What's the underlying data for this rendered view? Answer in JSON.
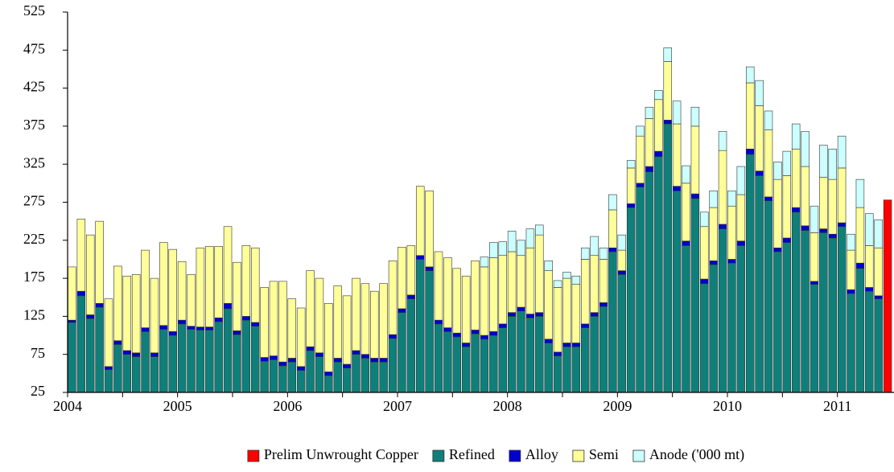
{
  "chart_data": {
    "type": "bar",
    "stacked": true,
    "categories": [
      "2004",
      null,
      null,
      null,
      null,
      null,
      null,
      null,
      null,
      null,
      null,
      null,
      "2005",
      null,
      null,
      null,
      null,
      null,
      null,
      null,
      null,
      null,
      null,
      null,
      "2006",
      null,
      null,
      null,
      null,
      null,
      null,
      null,
      null,
      null,
      null,
      null,
      "2007",
      null,
      null,
      null,
      null,
      null,
      null,
      null,
      null,
      null,
      null,
      null,
      "2008",
      null,
      null,
      null,
      null,
      null,
      null,
      null,
      null,
      null,
      null,
      null,
      "2009",
      null,
      null,
      null,
      null,
      null,
      null,
      null,
      null,
      null,
      null,
      null,
      "2010",
      null,
      null,
      null,
      null,
      null,
      null,
      null,
      null,
      null,
      null,
      null,
      "2011",
      null,
      null,
      null,
      null,
      null
    ],
    "series": [
      {
        "name": "Prelim Unwrought Copper",
        "color": "#ff0000",
        "values": [
          null,
          null,
          null,
          null,
          null,
          null,
          null,
          null,
          null,
          null,
          null,
          null,
          null,
          null,
          null,
          null,
          null,
          null,
          null,
          null,
          null,
          null,
          null,
          null,
          null,
          null,
          null,
          null,
          null,
          null,
          null,
          null,
          null,
          null,
          null,
          null,
          null,
          null,
          null,
          null,
          null,
          null,
          null,
          null,
          null,
          null,
          null,
          null,
          null,
          null,
          null,
          null,
          null,
          null,
          null,
          null,
          null,
          null,
          null,
          null,
          null,
          null,
          null,
          null,
          null,
          null,
          null,
          null,
          null,
          null,
          null,
          null,
          null,
          null,
          null,
          null,
          null,
          null,
          null,
          null,
          null,
          null,
          null,
          null,
          null,
          null,
          null,
          null,
          null,
          278
        ]
      },
      {
        "name": "Refined",
        "color": "#0f7f7a",
        "values": [
          117,
          152,
          122,
          137,
          55,
          88,
          75,
          72,
          105,
          72,
          108,
          100,
          115,
          108,
          107,
          107,
          118,
          135,
          101,
          120,
          112,
          66,
          68,
          60,
          65,
          54,
          80,
          72,
          47,
          65,
          57,
          75,
          70,
          65,
          65,
          96,
          130,
          148,
          200,
          185,
          115,
          105,
          98,
          85,
          102,
          95,
          100,
          110,
          125,
          132,
          123,
          125,
          90,
          73,
          85,
          85,
          110,
          125,
          138,
          210,
          180,
          268,
          295,
          315,
          335,
          378,
          290,
          218,
          280,
          168,
          193,
          240,
          195,
          218,
          338,
          310,
          277,
          210,
          222,
          262,
          238,
          167,
          235,
          228,
          243,
          155,
          188,
          158,
          148,
          null
        ]
      },
      {
        "name": "Alloy",
        "color": "#0000cc",
        "values": [
          3,
          6,
          5,
          5,
          4,
          5,
          5,
          5,
          5,
          5,
          5,
          5,
          5,
          4,
          4,
          4,
          5,
          7,
          5,
          5,
          5,
          5,
          5,
          5,
          5,
          5,
          5,
          5,
          5,
          5,
          5,
          5,
          5,
          5,
          5,
          5,
          5,
          5,
          5,
          5,
          5,
          5,
          5,
          5,
          5,
          5,
          5,
          5,
          5,
          5,
          5,
          5,
          5,
          5,
          5,
          5,
          5,
          5,
          5,
          5,
          5,
          5,
          5,
          7,
          7,
          5,
          6,
          6,
          6,
          6,
          5,
          6,
          5,
          6,
          7,
          6,
          5,
          5,
          6,
          6,
          6,
          4,
          5,
          5,
          5,
          5,
          7,
          5,
          4,
          null
        ]
      },
      {
        "name": "Semi",
        "color": "#ffff99",
        "values": [
          70,
          95,
          105,
          108,
          89,
          98,
          98,
          103,
          102,
          98,
          109,
          108,
          77,
          68,
          104,
          106,
          94,
          101,
          90,
          93,
          98,
          92,
          98,
          106,
          78,
          77,
          100,
          98,
          90,
          95,
          90,
          95,
          93,
          88,
          98,
          97,
          81,
          65,
          91,
          100,
          90,
          92,
          85,
          88,
          91,
          90,
          97,
          90,
          80,
          68,
          87,
          102,
          90,
          85,
          85,
          77,
          85,
          75,
          57,
          50,
          27,
          47,
          62,
          63,
          68,
          77,
          82,
          76,
          89,
          69,
          70,
          97,
          70,
          61,
          87,
          86,
          88,
          90,
          82,
          77,
          78,
          64,
          68,
          72,
          72,
          52,
          73,
          55,
          63,
          null
        ]
      },
      {
        "name": "Anode ('000 mt)",
        "color": "#ccffff",
        "values": [
          0,
          0,
          0,
          0,
          0,
          0,
          0,
          0,
          0,
          0,
          0,
          0,
          0,
          0,
          0,
          0,
          0,
          0,
          0,
          0,
          0,
          0,
          0,
          0,
          0,
          0,
          0,
          0,
          0,
          0,
          0,
          0,
          0,
          0,
          0,
          0,
          0,
          0,
          0,
          0,
          0,
          0,
          0,
          0,
          0,
          13,
          20,
          18,
          27,
          20,
          25,
          13,
          13,
          9,
          8,
          11,
          15,
          25,
          15,
          20,
          20,
          10,
          13,
          15,
          12,
          18,
          30,
          23,
          25,
          19,
          22,
          25,
          20,
          37,
          21,
          33,
          25,
          23,
          32,
          33,
          46,
          35,
          42,
          40,
          42,
          21,
          37,
          42,
          37,
          null
        ]
      }
    ],
    "ylim": [
      25,
      525
    ],
    "yticks": [
      25,
      75,
      125,
      175,
      225,
      275,
      325,
      375,
      425,
      475,
      525
    ],
    "legend": "bottom"
  }
}
